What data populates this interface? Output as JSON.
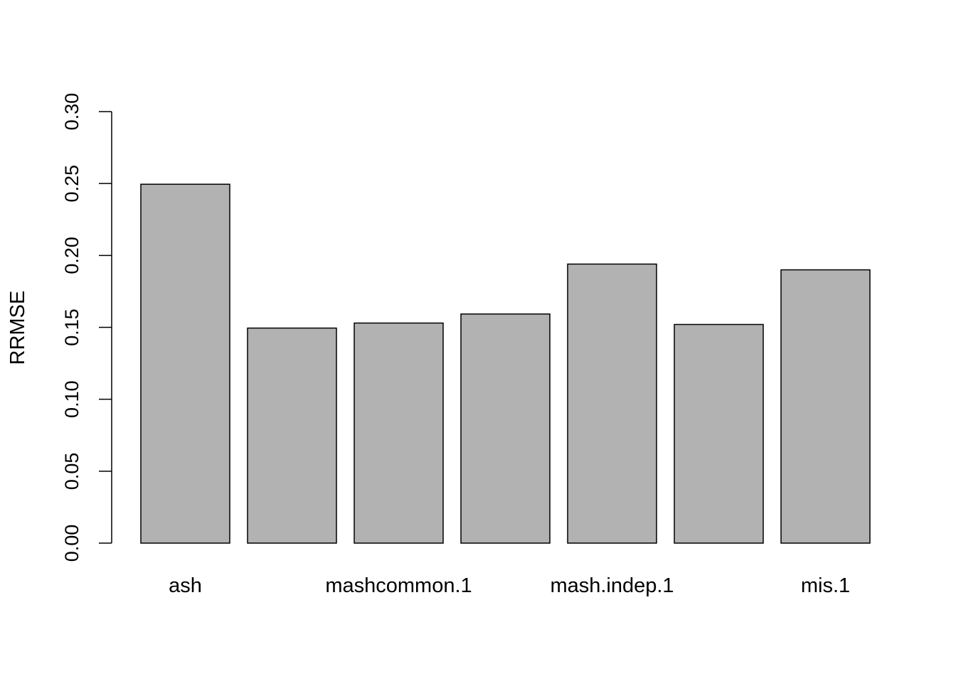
{
  "chart_data": {
    "type": "bar",
    "title": "",
    "xlabel": "",
    "ylabel": "RRMSE",
    "categories": [
      "ash",
      "",
      "mashcommon.1",
      "",
      "mash.indep.1",
      "",
      "mis.1"
    ],
    "values": [
      0.2495,
      0.1495,
      0.153,
      0.1593,
      0.194,
      0.152,
      0.19
    ],
    "ylim": [
      0,
      0.3
    ],
    "yticks": [
      0.0,
      0.05,
      0.1,
      0.15,
      0.2,
      0.25,
      0.3
    ],
    "ytick_labels": [
      "0.00",
      "0.05",
      "0.10",
      "0.15",
      "0.20",
      "0.25",
      "0.30"
    ],
    "grid": false,
    "bar_color": "#b2b2b2",
    "bar_stroke": "#000000"
  }
}
